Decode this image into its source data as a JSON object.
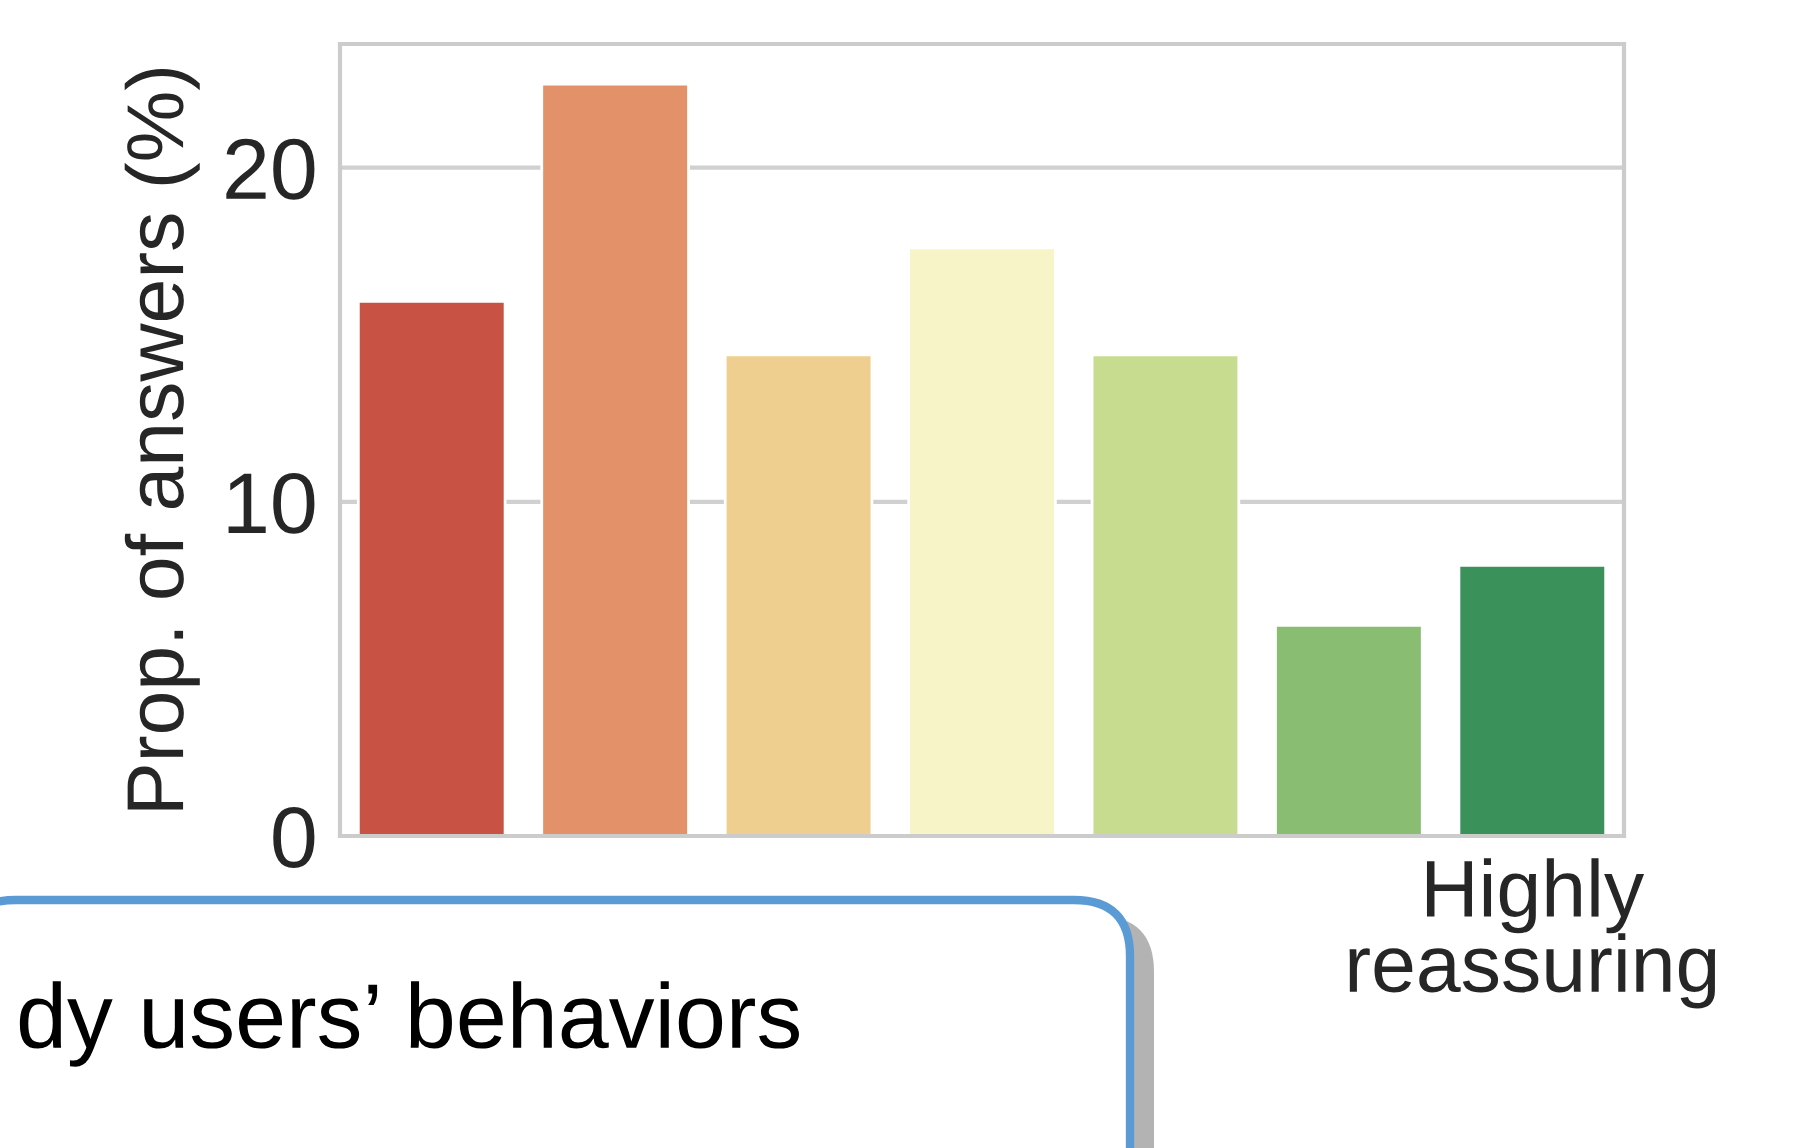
{
  "chart_data": {
    "type": "bar",
    "ylabel": "Prop. of answers (%)",
    "categories": [
      null,
      null,
      null,
      null,
      null,
      null,
      "Highly reassuring"
    ],
    "values": [
      16.0,
      22.5,
      14.4,
      17.6,
      14.4,
      6.3,
      8.1
    ],
    "colors": [
      "#c85244",
      "#e29168",
      "#eecf8f",
      "#f7f5c8",
      "#c7dc8f",
      "#89bd71",
      "#3a915a"
    ],
    "ylim": [
      0,
      23.7
    ],
    "yticks": [
      0,
      10,
      20
    ],
    "grid": "y",
    "annotations": [
      "dy users’ behaviors"
    ]
  }
}
